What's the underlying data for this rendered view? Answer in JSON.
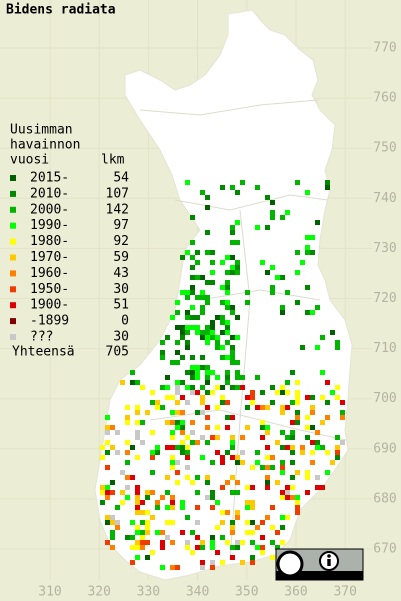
{
  "title": "Bidens radiata",
  "legend": {
    "heading": [
      "Uusimman",
      "havainnon",
      "vuosi"
    ],
    "count_heading": "lkm",
    "rows": [
      {
        "label": "2015-",
        "count": 54,
        "color": "#006000"
      },
      {
        "label": "2010-",
        "count": 107,
        "color": "#008800"
      },
      {
        "label": "2000-",
        "count": 142,
        "color": "#00b400"
      },
      {
        "label": "1990-",
        "count": 97,
        "color": "#00ff00"
      },
      {
        "label": "1980-",
        "count": 92,
        "color": "#ffff00"
      },
      {
        "label": "1970-",
        "count": 59,
        "color": "#ffc800"
      },
      {
        "label": "1960-",
        "count": 43,
        "color": "#ff8000"
      },
      {
        "label": "1950-",
        "count": 30,
        "color": "#f03c00"
      },
      {
        "label": "1900-",
        "count": 51,
        "color": "#dc0000"
      },
      {
        "label": "-1899",
        "count": 0,
        "color": "#800000"
      },
      {
        "label": "???",
        "count": 30,
        "color": "#c8c8c8"
      }
    ],
    "total_label": "Yhteensä",
    "total": 705
  },
  "x_labels": [
    310,
    320,
    330,
    340,
    350,
    360,
    370
  ],
  "y_labels": [
    770,
    760,
    750,
    740,
    730,
    720,
    710,
    700,
    690,
    680,
    670
  ]
}
